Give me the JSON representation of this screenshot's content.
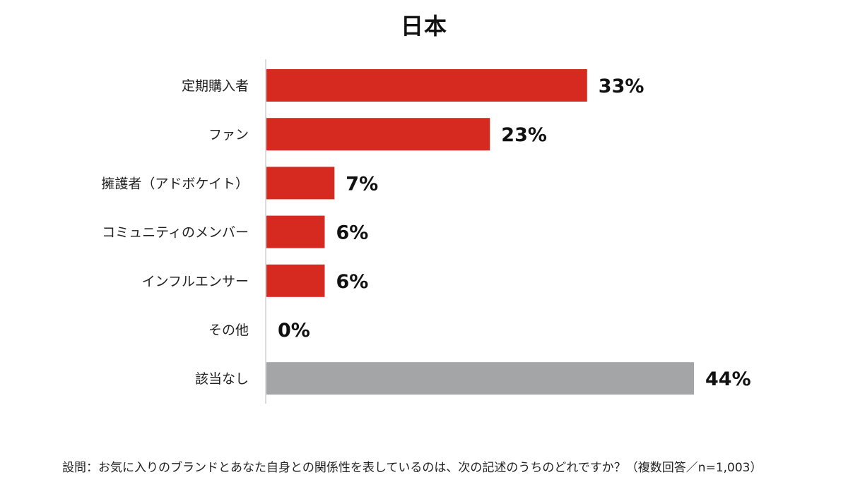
{
  "chart_data": {
    "type": "bar",
    "orientation": "horizontal",
    "title": "日本",
    "categories": [
      "定期購入者",
      "ファン",
      "擁護者（アドボケイト）",
      "コミュニティのメンバー",
      "インフルエンサー",
      "その他",
      "該当なし"
    ],
    "values": [
      33,
      23,
      7,
      6,
      6,
      0,
      44
    ],
    "value_labels": [
      "33%",
      "23%",
      "7%",
      "6%",
      "6%",
      "0%",
      "44%"
    ],
    "value_unit": "%",
    "bar_colors": [
      "#d62a20",
      "#d62a20",
      "#d62a20",
      "#d62a20",
      "#d62a20",
      "#d62a20",
      "#a3a5a7"
    ],
    "xlim": [
      0,
      44
    ],
    "grid": false,
    "legend": "none"
  },
  "footnote": "設問：お気に入りのブランドとあなた自身との関係性を表しているのは、次の記述のうちのどれですか？（複数回答／n=1,003）"
}
